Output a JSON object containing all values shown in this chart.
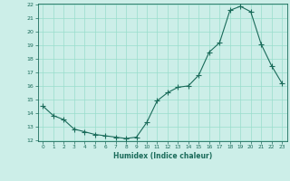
{
  "x": [
    0,
    1,
    2,
    3,
    4,
    5,
    6,
    7,
    8,
    9,
    10,
    11,
    12,
    13,
    14,
    15,
    16,
    17,
    18,
    19,
    20,
    21,
    22,
    23
  ],
  "y": [
    14.5,
    13.8,
    13.5,
    12.8,
    12.6,
    12.4,
    12.3,
    12.2,
    12.1,
    12.2,
    13.3,
    14.9,
    15.5,
    15.9,
    16.0,
    16.8,
    18.5,
    19.2,
    21.6,
    21.9,
    21.5,
    19.1,
    17.5,
    16.2
  ],
  "xlabel": "Humidex (Indice chaleur)",
  "ylim": [
    12,
    22
  ],
  "xlim": [
    -0.5,
    23.5
  ],
  "yticks": [
    12,
    13,
    14,
    15,
    16,
    17,
    18,
    19,
    20,
    21,
    22
  ],
  "xticks": [
    0,
    1,
    2,
    3,
    4,
    5,
    6,
    7,
    8,
    9,
    10,
    11,
    12,
    13,
    14,
    15,
    16,
    17,
    18,
    19,
    20,
    21,
    22,
    23
  ],
  "line_color": "#1a6b5a",
  "marker_color": "#1a6b5a",
  "bg_color": "#cceee8",
  "grid_color": "#99ddcc",
  "axes_color": "#1a6b5a"
}
